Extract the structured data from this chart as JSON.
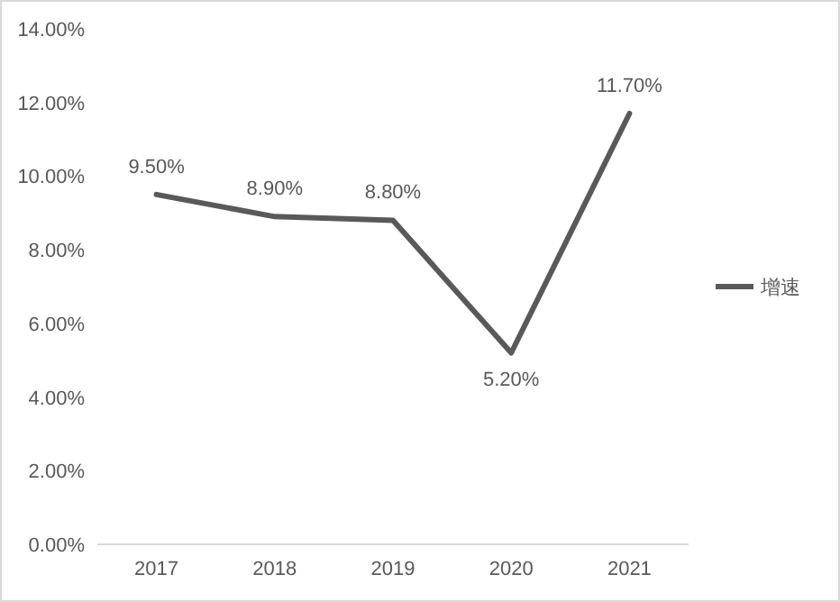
{
  "chart_data": {
    "type": "line",
    "categories": [
      "2017",
      "2018",
      "2019",
      "2020",
      "2021"
    ],
    "series": [
      {
        "name": "增速",
        "color": "#595959",
        "values": [
          9.5,
          8.9,
          8.8,
          5.2,
          11.7
        ],
        "value_labels": [
          "9.50%",
          "8.90%",
          "8.80%",
          "5.20%",
          "11.70%"
        ]
      }
    ],
    "ylim": [
      0,
      14
    ],
    "yticks": [
      {
        "value": 0,
        "label": "0.00%"
      },
      {
        "value": 2,
        "label": "2.00%"
      },
      {
        "value": 4,
        "label": "4.00%"
      },
      {
        "value": 6,
        "label": "6.00%"
      },
      {
        "value": 8,
        "label": "8.00%"
      },
      {
        "value": 10,
        "label": "10.00%"
      },
      {
        "value": 12,
        "label": "12.00%"
      },
      {
        "value": 14,
        "label": "14.00%"
      }
    ],
    "grid": false,
    "legend": "right",
    "marker": "none",
    "line_style": "solid"
  }
}
